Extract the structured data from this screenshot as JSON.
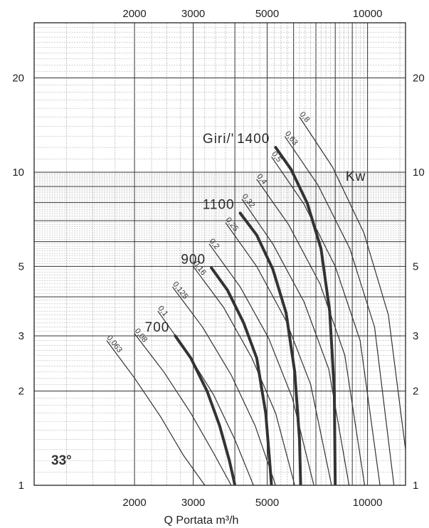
{
  "chart_data": {
    "type": "line",
    "xlabel": "Q Portata m³/h",
    "x_scale": "log",
    "y_scale": "log",
    "xlim": [
      1000,
      13000
    ],
    "ylim": [
      1,
      30
    ],
    "grid": true,
    "x_ticks_bottom": [
      {
        "value": 2000,
        "label": "2000"
      },
      {
        "value": 3000,
        "label": "3000"
      },
      {
        "value": 5000,
        "label": "5000"
      },
      {
        "value": 10000,
        "label": "10000"
      }
    ],
    "x_ticks_top": [
      {
        "value": 2000,
        "label": "2000"
      },
      {
        "value": 3000,
        "label": "3000"
      },
      {
        "value": 5000,
        "label": "5000"
      },
      {
        "value": 10000,
        "label": "10000"
      }
    ],
    "y_ticks": [
      {
        "value": 1,
        "label": "1"
      },
      {
        "value": 2,
        "label": "2"
      },
      {
        "value": 3,
        "label": "3"
      },
      {
        "value": 5,
        "label": "5"
      },
      {
        "value": 10,
        "label": "10"
      },
      {
        "value": 20,
        "label": "20"
      }
    ],
    "annotation": "33°",
    "speed_unit_label": "Giri/'",
    "speed_curves": [
      {
        "name": "700",
        "label": "700",
        "x": [
          2650,
          2950,
          3300,
          3600,
          3850,
          3970,
          4000
        ],
        "y": [
          3.0,
          2.55,
          2.0,
          1.55,
          1.2,
          1.04,
          1.0
        ]
      },
      {
        "name": "900",
        "label": "900",
        "x": [
          3400,
          3800,
          4250,
          4650,
          4950,
          5100,
          5150
        ],
        "y": [
          4.95,
          4.2,
          3.3,
          2.55,
          1.7,
          1.15,
          1.0
        ]
      },
      {
        "name": "1100",
        "label": "1100",
        "x": [
          4150,
          4650,
          5200,
          5700,
          6050,
          6250,
          6300
        ],
        "y": [
          7.4,
          6.3,
          4.9,
          3.55,
          2.3,
          1.4,
          1.0
        ]
      },
      {
        "name": "1400",
        "label": "1400",
        "x": [
          5300,
          5900,
          6600,
          7250,
          7700,
          7950,
          8000
        ],
        "y": [
          12.0,
          10.2,
          7.95,
          5.7,
          3.6,
          2.0,
          1.0
        ]
      }
    ],
    "power_curves": [
      {
        "label": "0,063",
        "x": [
          1650,
          2000,
          2400,
          2800,
          3250
        ],
        "y": [
          2.9,
          2.2,
          1.65,
          1.25,
          1.0
        ]
      },
      {
        "label": "0,08",
        "x": [
          2000,
          2450,
          2950,
          3450,
          3900
        ],
        "y": [
          3.05,
          2.3,
          1.7,
          1.27,
          1.0
        ]
      },
      {
        "label": "0,1",
        "x": [
          2350,
          2850,
          3450,
          4000,
          4550
        ],
        "y": [
          3.6,
          2.7,
          1.95,
          1.4,
          1.0
        ]
      },
      {
        "label": "0,125",
        "x": [
          2600,
          3200,
          3900,
          4600,
          5300
        ],
        "y": [
          4.3,
          3.2,
          2.25,
          1.55,
          1.0
        ]
      },
      {
        "label": "0,16",
        "x": [
          3000,
          3700,
          4500,
          5300,
          6050
        ],
        "y": [
          5.0,
          3.7,
          2.55,
          1.7,
          1.0
        ]
      },
      {
        "label": "0,2",
        "x": [
          3350,
          4150,
          5050,
          5950,
          6900
        ],
        "y": [
          5.9,
          4.3,
          2.95,
          1.9,
          1.0
        ]
      },
      {
        "label": "0,25",
        "x": [
          3750,
          4650,
          5700,
          6750,
          7800
        ],
        "y": [
          6.9,
          5.0,
          3.35,
          2.1,
          1.0
        ]
      },
      {
        "label": "0,32",
        "x": [
          4200,
          5200,
          6450,
          7650,
          8800
        ],
        "y": [
          8.2,
          5.9,
          3.85,
          2.35,
          1.0
        ]
      },
      {
        "label": "0,4",
        "x": [
          4650,
          5800,
          7200,
          8550,
          9800
        ],
        "y": [
          9.5,
          6.8,
          4.4,
          2.6,
          1.0
        ]
      },
      {
        "label": "0,5",
        "x": [
          5150,
          6450,
          8000,
          9500,
          10900
        ],
        "y": [
          11.2,
          7.9,
          5.0,
          2.9,
          1.0
        ]
      },
      {
        "label": "0,63",
        "x": [
          5650,
          7100,
          8850,
          10500,
          12000
        ],
        "y": [
          13.0,
          9.1,
          5.7,
          3.2,
          1.0
        ]
      },
      {
        "label": "0,8",
        "x": [
          6250,
          7850,
          9750,
          11550,
          13000
        ],
        "y": [
          15.0,
          10.4,
          6.4,
          3.5,
          1.3
        ]
      }
    ],
    "power_unit_label": "Kw"
  }
}
